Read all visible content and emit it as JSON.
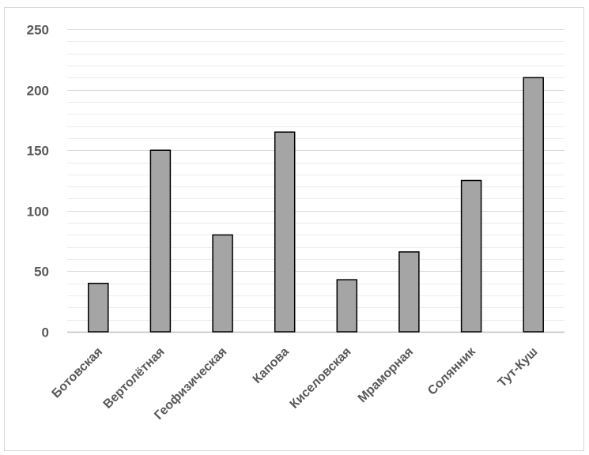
{
  "chart_data": {
    "type": "bar",
    "title": "",
    "xlabel": "",
    "ylabel": "",
    "categories": [
      "Ботовская",
      "Вертолётная",
      "Геофизическая",
      "Капова",
      "Киселовская",
      "Мраморная",
      "Солянник",
      "Тут-Куш"
    ],
    "values": [
      40,
      150,
      80,
      165,
      43,
      66,
      125,
      210
    ],
    "ylim": [
      0,
      250
    ],
    "yticks": [
      0,
      50,
      100,
      150,
      200,
      250
    ],
    "ytick_labels": [
      "0",
      "50",
      "100",
      "150",
      "200",
      "250"
    ],
    "grid": true,
    "minor_grid_step": 10,
    "legend": "none",
    "colors": {
      "bar_fill": "#a5a5a5",
      "bar_stroke": "#000000",
      "major_grid": "#d9d9d9",
      "minor_grid": "#ececec",
      "label_text": "#595959"
    }
  }
}
